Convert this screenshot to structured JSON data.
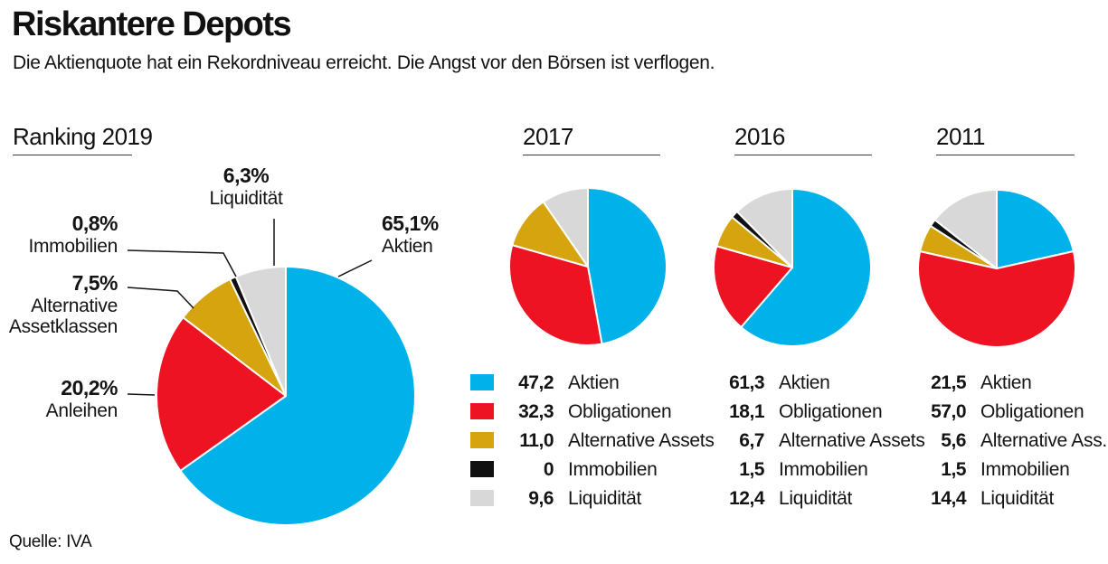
{
  "header": {
    "title": "Riskantere Depots",
    "subtitle": "Die Aktienquote hat ein Rekordniveau erreicht. Die Angst vor den Börsen ist verflogen."
  },
  "source": "Quelle: IVA",
  "palette": {
    "aktien": "#00b1ea",
    "obligationen": "#ee1322",
    "alternative": "#d5a40e",
    "immobilien": "#101010",
    "liquiditaet": "#d8d8d8"
  },
  "category_order": [
    "aktien",
    "obligationen",
    "alternative",
    "immobilien",
    "liquiditaet"
  ],
  "chart_data": [
    {
      "type": "pie",
      "title": "Ranking 2019",
      "labels": [
        "Aktien",
        "Anleihen",
        "Alternative Assetklassen",
        "Immobilien",
        "Liquidität"
      ],
      "values": [
        65.1,
        20.2,
        7.5,
        0.8,
        6.3
      ],
      "legend_position": "none",
      "callouts": [
        {
          "value": "6,3%",
          "lines": [
            "Liquidität"
          ]
        },
        {
          "value": "0,8%",
          "lines": [
            "Immobilien"
          ]
        },
        {
          "value": "7,5%",
          "lines": [
            "Alternative",
            "Assetklassen"
          ]
        },
        {
          "value": "65,1%",
          "lines": [
            "Aktien"
          ]
        },
        {
          "value": "20,2%",
          "lines": [
            "Anleihen"
          ]
        }
      ]
    },
    {
      "type": "pie",
      "title": "2017",
      "labels": [
        "Aktien",
        "Obligationen",
        "Alternative Assets",
        "Immobilien",
        "Liquidität"
      ],
      "values": [
        47.2,
        32.3,
        11.0,
        0,
        9.6
      ],
      "display_values": [
        "47,2",
        "32,3",
        "11,0",
        "0",
        "9,6"
      ],
      "legend_position": "bottom"
    },
    {
      "type": "pie",
      "title": "2016",
      "labels": [
        "Aktien",
        "Obligationen",
        "Alternative Assets",
        "Immobilien",
        "Liquidität"
      ],
      "values": [
        61.3,
        18.1,
        6.7,
        1.5,
        12.4
      ],
      "display_values": [
        "61,3",
        "18,1",
        "6,7",
        "1,5",
        "12,4"
      ],
      "legend_position": "bottom"
    },
    {
      "type": "pie",
      "title": "2011",
      "labels": [
        "Aktien",
        "Obligationen",
        "Alternative Ass.",
        "Immobilien",
        "Liquidität"
      ],
      "values": [
        21.5,
        57.0,
        5.6,
        1.5,
        14.4
      ],
      "display_values": [
        "21,5",
        "57,0",
        "5,6",
        "1,5",
        "14,4"
      ],
      "legend_position": "bottom"
    }
  ]
}
